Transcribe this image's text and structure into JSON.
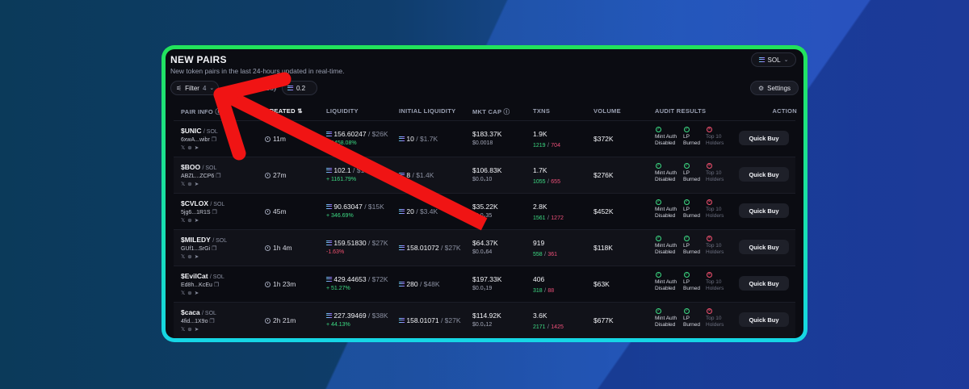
{
  "header": {
    "title": "NEW PAIRS",
    "subtitle": "New token pairs in the last 24-hours updated in real-time.",
    "chain": "SOL"
  },
  "toolbar": {
    "filter_label": "Filter",
    "filter_count": "4",
    "buy_label": "Buy",
    "buy_amount": "0.2",
    "settings_label": "Settings"
  },
  "columns": {
    "pair_info": "PAIR INFO",
    "created": "CREATED",
    "liquidity": "LIQUIDITY",
    "initial_liquidity": "INITIAL LIQUIDITY",
    "mkt_cap": "MKT CAP",
    "txns": "TXNS",
    "volume": "VOLUME",
    "audit": "AUDIT RESULTS",
    "action": "ACTION"
  },
  "audit_labels": {
    "mint": "Mint Auth Disabled",
    "lp": "LP Burned",
    "top10": "Top 10 Holders"
  },
  "action_label": "Quick Buy",
  "rows": [
    {
      "name": "$UNIC",
      "chain": "/ SOL",
      "addr": "6xwA...wibr",
      "age": "11m",
      "liq": "156.60247",
      "liq_usd": "/ $26K",
      "liq_change": "+ 1458.08%",
      "liq_dir": "up",
      "init_liq": "10",
      "init_usd": "/ $1.7K",
      "mcap": "$183.37K",
      "price": "$0.0018",
      "txns": "1.9K",
      "buys": "1219",
      "sells": "704",
      "volume": "$372K"
    },
    {
      "name": "$BOO",
      "chain": "/ SOL",
      "addr": "ABZL...ZCP6",
      "age": "27m",
      "liq": "102.1",
      "liq_usd": "/ $17K",
      "liq_change": "+ 1161.79%",
      "liq_dir": "up",
      "init_liq": "8",
      "init_usd": "/ $1.4K",
      "mcap": "$106.83K",
      "price": "$0.0₄10",
      "txns": "1.7K",
      "buys": "1055",
      "sells": "655",
      "volume": "$276K"
    },
    {
      "name": "$CVLOX",
      "chain": "/ SOL",
      "addr": "5jg6...1R1S",
      "age": "45m",
      "liq": "90.63047",
      "liq_usd": "/ $15K",
      "liq_change": "+ 346.69%",
      "liq_dir": "up",
      "init_liq": "20",
      "init_usd": "/ $3.4K",
      "mcap": "$35.22K",
      "price": "$0.0₄35",
      "txns": "2.8K",
      "buys": "1561",
      "sells": "1272",
      "volume": "$452K"
    },
    {
      "name": "$MILEDY",
      "chain": "/ SOL",
      "addr": "GUf1...SrGi",
      "age": "1h 4m",
      "liq": "159.51830",
      "liq_usd": "/ $27K",
      "liq_change": "-1.63%",
      "liq_dir": "down",
      "init_liq": "158.01072",
      "init_usd": "/ $27K",
      "mcap": "$64.37K",
      "price": "$0.0₄64",
      "txns": "919",
      "buys": "558",
      "sells": "361",
      "volume": "$118K"
    },
    {
      "name": "$EvilCat",
      "chain": "/ SOL",
      "addr": "Ed8h...KcEu",
      "age": "1h 23m",
      "liq": "429.44653",
      "liq_usd": "/ $72K",
      "liq_change": "+ 51.27%",
      "liq_dir": "up",
      "init_liq": "280",
      "init_usd": "/ $48K",
      "mcap": "$197.33K",
      "price": "$0.0₃19",
      "txns": "406",
      "buys": "318",
      "sells": "88",
      "volume": "$63K"
    },
    {
      "name": "$caca",
      "chain": "/ SOL",
      "addr": "4fid...1X9o",
      "age": "2h 21m",
      "liq": "227.39469",
      "liq_usd": "/ $38K",
      "liq_change": "+ 44.13%",
      "liq_dir": "up",
      "init_liq": "158.01071",
      "init_usd": "/ $27K",
      "mcap": "$114.92K",
      "price": "$0.0₄12",
      "txns": "3.6K",
      "buys": "2171",
      "sells": "1425",
      "volume": "$677K"
    }
  ]
}
